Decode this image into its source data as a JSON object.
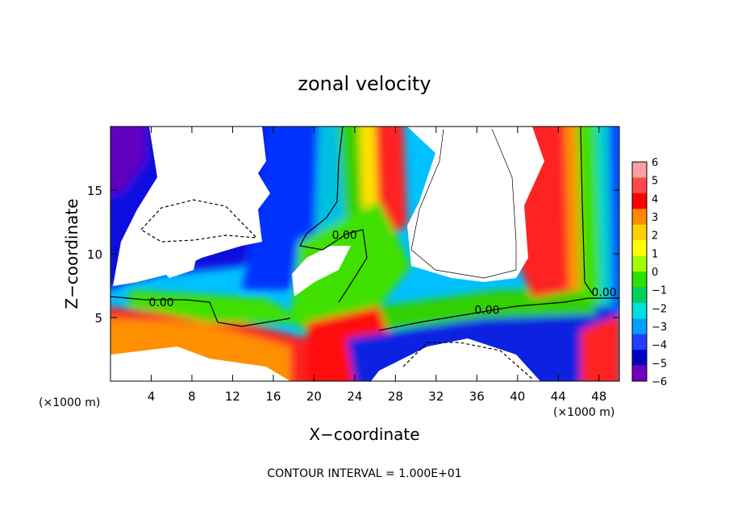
{
  "chart_data": {
    "type": "heatmap",
    "title": "zonal velocity",
    "xlabel": "X−coordinate",
    "ylabel": "Z−coordinate",
    "x_unit_label": "(×1000 m)",
    "z_unit_label": "(×1000 m)",
    "xlim": [
      0,
      50
    ],
    "ylim": [
      0,
      20
    ],
    "x_ticks": [
      4,
      8,
      12,
      16,
      20,
      24,
      28,
      32,
      36,
      40,
      44,
      48
    ],
    "y_ticks": [
      5,
      10,
      15
    ],
    "colorbar": {
      "ticks": [
        6,
        5,
        4,
        3,
        2,
        1,
        0,
        -1,
        -2,
        -3,
        -4,
        -5,
        -6
      ],
      "colors": [
        "#ff9e9e",
        "#ff4a4a",
        "#ff0000",
        "#ff8a00",
        "#ffd000",
        "#ffff00",
        "#a0ff00",
        "#30e000",
        "#00d060",
        "#00e0e0",
        "#00a0ff",
        "#2040ff",
        "#0000c0",
        "#7000c0"
      ],
      "range": [
        -6,
        6
      ],
      "clip_shown_as": "white"
    },
    "contour_labels": [
      {
        "text": "0.00",
        "x": 23.0,
        "z": 11.5
      },
      {
        "text": "0.00",
        "x": 5.0,
        "z": 6.2
      },
      {
        "text": "0.00",
        "x": 37.0,
        "z": 5.6
      },
      {
        "text": "0.00",
        "x": 48.5,
        "z": 7.0
      }
    ],
    "footnote": "CONTOUR INTERVAL = 1.000E+01"
  }
}
